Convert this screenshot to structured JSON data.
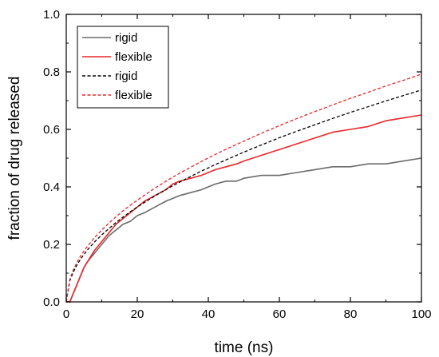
{
  "chart_data": {
    "type": "line",
    "title": "",
    "xlabel": "time (ns)",
    "ylabel": "fraction of drug released",
    "xlim": [
      0,
      100
    ],
    "ylim": [
      0,
      1.0
    ],
    "xticks": [
      "0",
      "20",
      "40",
      "60",
      "80",
      "100"
    ],
    "yticks": [
      "0.0",
      "0.2",
      "0.4",
      "0.6",
      "0.8",
      "1.0"
    ],
    "grid": false,
    "legend_position": "top-left",
    "series": [
      {
        "name": "rigid",
        "style": "solid",
        "color": "#6b6b6b",
        "x": [
          0,
          1,
          2,
          3,
          4,
          5,
          6,
          8,
          10,
          12,
          14,
          16,
          18,
          20,
          22,
          25,
          28,
          30,
          32,
          35,
          38,
          40,
          42,
          45,
          48,
          50,
          55,
          60,
          65,
          70,
          75,
          80,
          85,
          90,
          95,
          100
        ],
        "y": [
          0.0,
          0.0,
          0.03,
          0.06,
          0.09,
          0.12,
          0.14,
          0.17,
          0.2,
          0.23,
          0.25,
          0.27,
          0.28,
          0.3,
          0.31,
          0.33,
          0.35,
          0.36,
          0.37,
          0.38,
          0.39,
          0.4,
          0.41,
          0.42,
          0.42,
          0.43,
          0.44,
          0.44,
          0.45,
          0.46,
          0.47,
          0.47,
          0.48,
          0.48,
          0.49,
          0.5
        ]
      },
      {
        "name": "flexible",
        "style": "solid",
        "color": "#e8262a",
        "x": [
          0,
          1,
          2,
          3,
          4,
          5,
          6,
          8,
          10,
          12,
          14,
          16,
          18,
          20,
          22,
          25,
          28,
          30,
          32,
          35,
          38,
          40,
          42,
          45,
          48,
          50,
          55,
          60,
          65,
          70,
          75,
          80,
          85,
          90,
          95,
          100
        ],
        "y": [
          0.0,
          0.0,
          0.03,
          0.06,
          0.09,
          0.12,
          0.14,
          0.18,
          0.21,
          0.24,
          0.27,
          0.29,
          0.31,
          0.33,
          0.35,
          0.37,
          0.39,
          0.41,
          0.42,
          0.43,
          0.44,
          0.45,
          0.46,
          0.47,
          0.48,
          0.49,
          0.51,
          0.53,
          0.55,
          0.57,
          0.59,
          0.6,
          0.61,
          0.63,
          0.64,
          0.65
        ]
      },
      {
        "name": "rigid",
        "style": "dashed",
        "color": "#000000",
        "x": [
          0,
          1,
          2,
          3,
          4,
          5,
          6,
          8,
          10,
          12,
          14,
          16,
          18,
          20,
          22,
          25,
          28,
          30,
          32,
          35,
          38,
          40,
          42,
          45,
          48,
          50,
          55,
          60,
          65,
          70,
          75,
          80,
          85,
          90,
          95,
          100
        ],
        "y": [
          0.0,
          0.074,
          0.104,
          0.128,
          0.148,
          0.165,
          0.181,
          0.209,
          0.233,
          0.255,
          0.276,
          0.295,
          0.313,
          0.33,
          0.346,
          0.369,
          0.39,
          0.404,
          0.417,
          0.436,
          0.455,
          0.466,
          0.478,
          0.494,
          0.51,
          0.521,
          0.546,
          0.571,
          0.594,
          0.616,
          0.638,
          0.659,
          0.679,
          0.699,
          0.718,
          0.737
        ]
      },
      {
        "name": "flexible",
        "style": "dashed",
        "color": "#e8262a",
        "x": [
          0,
          1,
          2,
          3,
          4,
          5,
          6,
          8,
          10,
          12,
          14,
          16,
          18,
          20,
          22,
          25,
          28,
          30,
          32,
          35,
          38,
          40,
          42,
          45,
          48,
          50,
          55,
          60,
          65,
          70,
          75,
          80,
          85,
          90,
          95,
          100
        ],
        "y": [
          0.0,
          0.079,
          0.112,
          0.137,
          0.159,
          0.177,
          0.194,
          0.224,
          0.25,
          0.274,
          0.296,
          0.317,
          0.336,
          0.354,
          0.371,
          0.396,
          0.419,
          0.434,
          0.448,
          0.468,
          0.488,
          0.501,
          0.513,
          0.531,
          0.548,
          0.559,
          0.587,
          0.613,
          0.638,
          0.662,
          0.685,
          0.708,
          0.729,
          0.751,
          0.771,
          0.792
        ]
      }
    ]
  }
}
